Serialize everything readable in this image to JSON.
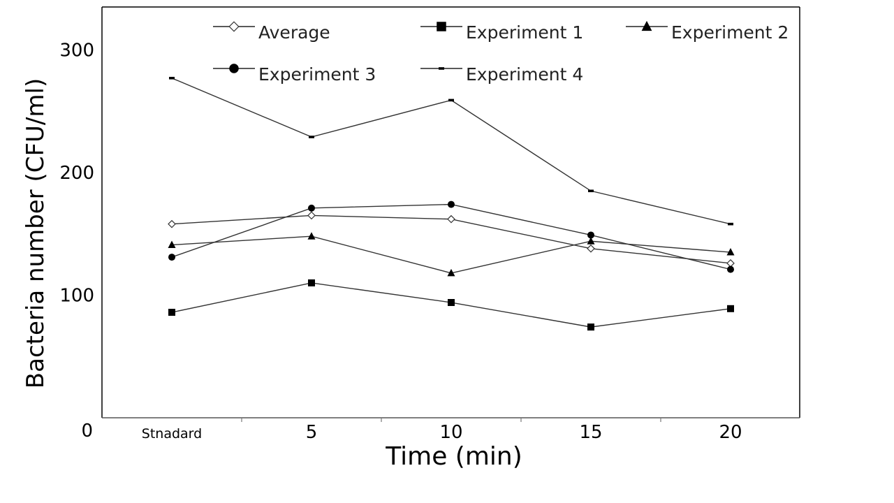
{
  "chart_data": {
    "type": "line",
    "title": "",
    "xlabel": "Time (min)",
    "ylabel": "Bacteria number (CFU/ml)",
    "categories": [
      "Stnadard",
      "5",
      "10",
      "15",
      "20"
    ],
    "y_ticks": [
      "0",
      "100",
      "200",
      "300"
    ],
    "ylim": [
      0,
      335
    ],
    "grid": false,
    "legend_position": "top",
    "series": [
      {
        "name": "Average",
        "marker": "diamond-open",
        "values": [
          158,
          165,
          162,
          138,
          126
        ]
      },
      {
        "name": "Experiment 1",
        "marker": "square",
        "values": [
          86,
          110,
          94,
          74,
          89
        ]
      },
      {
        "name": "Experiment 2",
        "marker": "triangle",
        "values": [
          141,
          148,
          118,
          144,
          135
        ]
      },
      {
        "name": "Experiment 3",
        "marker": "circle",
        "values": [
          131,
          171,
          174,
          149,
          121
        ]
      },
      {
        "name": "Experiment 4",
        "marker": "dash",
        "values": [
          277,
          229,
          259,
          185,
          158
        ]
      }
    ],
    "colors": {
      "line": "#333333",
      "marker": "#000000",
      "axis": "#000000"
    }
  }
}
